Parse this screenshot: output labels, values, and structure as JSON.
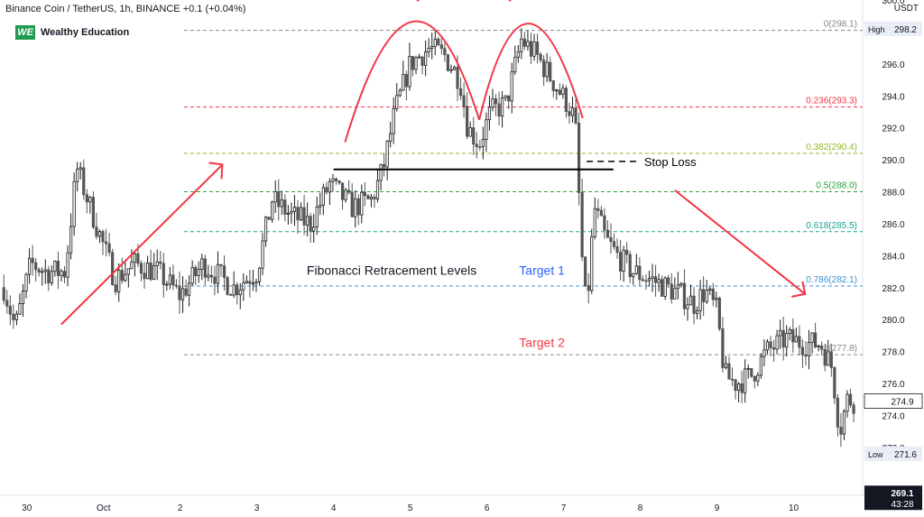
{
  "header": {
    "symbol_line": "Binance Coin / TetherUS, 1h, BINANCE",
    "change": "+0.1 (+0.04%)",
    "currency": "USDT"
  },
  "brand": {
    "mark": "WE",
    "name": "Wealthy Education"
  },
  "colors": {
    "up": "#1b1b1b",
    "down": "#555555",
    "red": "#f23645",
    "blue": "#2962ff",
    "axis_text": "#131722"
  },
  "chart_data": {
    "type": "candlestick",
    "title": "Binance Coin / TetherUS, 1h, BINANCE",
    "ylim": [
      269.0,
      300.0
    ],
    "y_ticks": [
      272.0,
      274.0,
      276.0,
      278.0,
      280.0,
      282.0,
      284.0,
      286.0,
      288.0,
      290.0,
      292.0,
      294.0,
      296.0,
      298.0,
      300.0
    ],
    "x_ticks": [
      {
        "label": "30",
        "x": 0.3
      },
      {
        "label": "Oct",
        "x": 1.3
      },
      {
        "label": "2",
        "x": 2.3
      },
      {
        "label": "3",
        "x": 3.3
      },
      {
        "label": "4",
        "x": 4.3
      },
      {
        "label": "5",
        "x": 5.3
      },
      {
        "label": "6",
        "x": 6.3
      },
      {
        "label": "7",
        "x": 7.3
      },
      {
        "label": "8",
        "x": 8.3
      },
      {
        "label": "9",
        "x": 9.3
      },
      {
        "label": "10",
        "x": 10.3
      }
    ],
    "price_path": [
      [
        0.0,
        282.0
      ],
      [
        0.15,
        279.5
      ],
      [
        0.35,
        283.5
      ],
      [
        0.55,
        283.0
      ],
      [
        0.8,
        283.0
      ],
      [
        0.95,
        289.5
      ],
      [
        1.2,
        286.0
      ],
      [
        1.45,
        282.5
      ],
      [
        1.7,
        283.5
      ],
      [
        2.0,
        283.0
      ],
      [
        2.3,
        281.5
      ],
      [
        2.6,
        283.5
      ],
      [
        3.0,
        282.0
      ],
      [
        3.3,
        283.0
      ],
      [
        3.5,
        287.5
      ],
      [
        3.75,
        286.5
      ],
      [
        4.0,
        286.0
      ],
      [
        4.25,
        288.5
      ],
      [
        4.55,
        287.0
      ],
      [
        4.8,
        287.5
      ],
      [
        4.95,
        289.5
      ],
      [
        5.1,
        293.0
      ],
      [
        5.3,
        296.0
      ],
      [
        5.55,
        297.0
      ],
      [
        5.75,
        296.5
      ],
      [
        5.95,
        295.0
      ],
      [
        6.05,
        292.0
      ],
      [
        6.2,
        291.0
      ],
      [
        6.35,
        293.0
      ],
      [
        6.55,
        293.5
      ],
      [
        6.75,
        297.5
      ],
      [
        6.95,
        296.5
      ],
      [
        7.15,
        295.0
      ],
      [
        7.35,
        293.5
      ],
      [
        7.45,
        292.5
      ],
      [
        7.55,
        283.0
      ],
      [
        7.6,
        280.5
      ],
      [
        7.7,
        287.0
      ],
      [
        7.85,
        285.0
      ],
      [
        8.0,
        284.0
      ],
      [
        8.2,
        283.0
      ],
      [
        8.45,
        282.5
      ],
      [
        8.65,
        282.0
      ],
      [
        8.85,
        281.5
      ],
      [
        9.0,
        281.0
      ],
      [
        9.15,
        281.8
      ],
      [
        9.3,
        280.5
      ],
      [
        9.4,
        276.5
      ],
      [
        9.55,
        276.0
      ],
      [
        9.75,
        276.5
      ],
      [
        9.95,
        278.0
      ],
      [
        10.2,
        278.8
      ],
      [
        10.45,
        278.5
      ],
      [
        10.65,
        278.5
      ],
      [
        10.8,
        277.0
      ],
      [
        10.9,
        273.0
      ],
      [
        11.0,
        275.0
      ],
      [
        11.1,
        274.9
      ]
    ],
    "levels": [
      {
        "label": "0(298.1)",
        "value": 298.1,
        "color": "#888888"
      },
      {
        "label": "0.236(293.3)",
        "value": 293.3,
        "color": "#f23645"
      },
      {
        "label": "0.382(290.4)",
        "value": 290.4,
        "color": "#8fb828"
      },
      {
        "label": "0.5(288.0)",
        "value": 288.0,
        "color": "#2aa13a"
      },
      {
        "label": "0.618(285.5)",
        "value": 285.5,
        "color": "#17a391"
      },
      {
        "label": "0.786(282.1)",
        "value": 282.1,
        "color": "#3a8fd0"
      },
      {
        "label": "1(277.8)",
        "value": 277.8,
        "color": "#888888"
      }
    ],
    "fib_start_x": 2.35,
    "neckline": {
      "value": 289.4,
      "x_start": 4.3,
      "x_end": 7.95
    },
    "annotations": {
      "fibonacci": "Fibonacci Retracement Levels",
      "stop_loss": "Stop Loss",
      "target1": "Target 1",
      "target2": "Target 2"
    },
    "price_labels": {
      "high_label": "High",
      "high": "298.2",
      "low_label": "Low",
      "low": "271.6",
      "current": "274.9",
      "last": "269.1",
      "countdown": "43:28"
    }
  }
}
